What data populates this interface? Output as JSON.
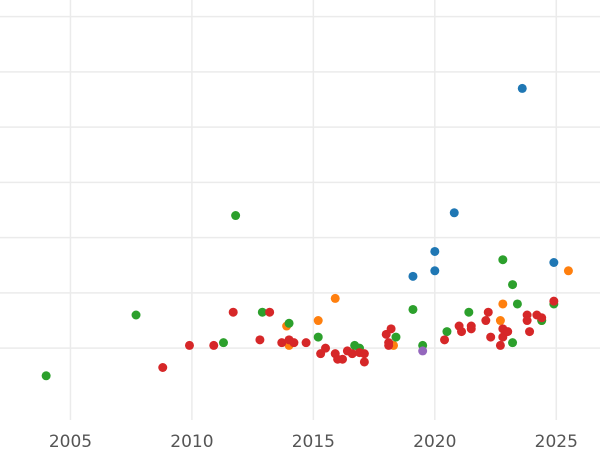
{
  "chart_data": {
    "type": "scatter",
    "title": "",
    "xlabel": "",
    "ylabel": "",
    "xlim": [
      2002.1,
      2026.8
    ],
    "ylim": [
      -1.3,
      6.3
    ],
    "x_ticks": [
      2005,
      2010,
      2015,
      2020,
      2025
    ],
    "x_tick_labels": [
      "2005",
      "2010",
      "2015",
      "2020",
      "2025"
    ],
    "y_gridlines": [
      0,
      1,
      2,
      3,
      4,
      5,
      6
    ],
    "y_tick_labels_shown": false,
    "grid": true,
    "legend": "none",
    "series": [
      {
        "color": "#1f77b4",
        "points": [
          [
            2023.6,
            4.7
          ],
          [
            2020.8,
            2.45
          ],
          [
            2020.0,
            1.75
          ],
          [
            2020.0,
            1.4
          ],
          [
            2019.1,
            1.3
          ],
          [
            2024.9,
            1.55
          ]
        ]
      },
      {
        "color": "#ff7f0e",
        "points": [
          [
            2025.5,
            1.4
          ],
          [
            2015.9,
            0.9
          ],
          [
            2015.2,
            0.5
          ],
          [
            2013.9,
            0.4
          ],
          [
            2014.0,
            0.05
          ],
          [
            2018.3,
            0.05
          ],
          [
            2022.8,
            0.8
          ],
          [
            2022.7,
            0.5
          ],
          [
            2024.4,
            0.5
          ]
        ]
      },
      {
        "color": "#2ca02c",
        "points": [
          [
            2004.0,
            -0.5
          ],
          [
            2007.7,
            0.6
          ],
          [
            2011.8,
            2.4
          ],
          [
            2011.3,
            0.1
          ],
          [
            2012.9,
            0.65
          ],
          [
            2014.0,
            0.45
          ],
          [
            2015.2,
            0.2
          ],
          [
            2016.7,
            0.05
          ],
          [
            2016.9,
            0.0
          ],
          [
            2018.4,
            0.2
          ],
          [
            2019.1,
            0.7
          ],
          [
            2019.5,
            0.05
          ],
          [
            2020.5,
            0.3
          ],
          [
            2021.4,
            0.65
          ],
          [
            2022.8,
            1.6
          ],
          [
            2023.2,
            1.15
          ],
          [
            2023.4,
            0.8
          ],
          [
            2023.2,
            0.1
          ],
          [
            2024.9,
            0.8
          ],
          [
            2024.4,
            0.5
          ]
        ]
      },
      {
        "color": "#d62728",
        "points": [
          [
            2008.8,
            -0.35
          ],
          [
            2009.9,
            0.05
          ],
          [
            2010.9,
            0.05
          ],
          [
            2011.7,
            0.65
          ],
          [
            2012.8,
            0.15
          ],
          [
            2013.2,
            0.65
          ],
          [
            2013.7,
            0.1
          ],
          [
            2014.0,
            0.15
          ],
          [
            2014.2,
            0.1
          ],
          [
            2014.7,
            0.1
          ],
          [
            2015.3,
            -0.1
          ],
          [
            2015.5,
            0.0
          ],
          [
            2015.9,
            -0.1
          ],
          [
            2016.0,
            -0.2
          ],
          [
            2016.2,
            -0.2
          ],
          [
            2016.4,
            -0.05
          ],
          [
            2016.6,
            -0.1
          ],
          [
            2016.9,
            -0.08
          ],
          [
            2017.1,
            -0.1
          ],
          [
            2017.1,
            -0.25
          ],
          [
            2018.0,
            0.25
          ],
          [
            2018.1,
            0.1
          ],
          [
            2018.1,
            0.05
          ],
          [
            2018.2,
            0.35
          ],
          [
            2020.4,
            0.15
          ],
          [
            2021.0,
            0.4
          ],
          [
            2021.1,
            0.3
          ],
          [
            2021.5,
            0.4
          ],
          [
            2021.5,
            0.35
          ],
          [
            2022.1,
            0.5
          ],
          [
            2022.2,
            0.65
          ],
          [
            2022.3,
            0.2
          ],
          [
            2022.7,
            0.05
          ],
          [
            2022.8,
            0.35
          ],
          [
            2022.8,
            0.2
          ],
          [
            2023.0,
            0.3
          ],
          [
            2023.8,
            0.6
          ],
          [
            2023.8,
            0.5
          ],
          [
            2023.9,
            0.3
          ],
          [
            2024.2,
            0.6
          ],
          [
            2024.4,
            0.55
          ],
          [
            2024.9,
            0.85
          ]
        ]
      },
      {
        "color": "#9467bd",
        "points": [
          [
            2019.5,
            -0.05
          ]
        ]
      }
    ]
  }
}
